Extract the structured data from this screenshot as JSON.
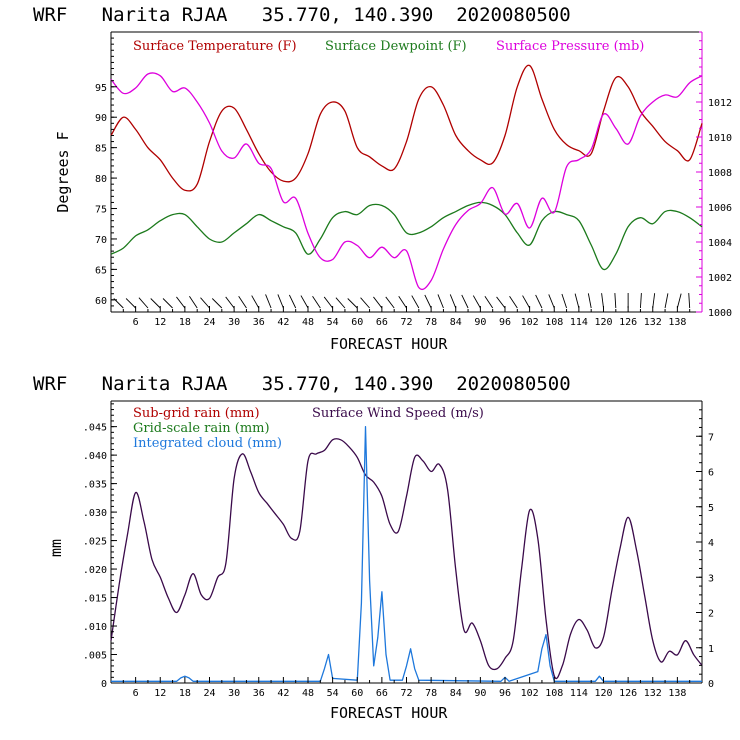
{
  "chart_data": [
    {
      "type": "line",
      "title": "WRF   Narita RJAA   35.770, 140.390  2020080500",
      "xlabel": "FORECAST HOUR",
      "ylabel": "Degrees F",
      "xlim": [
        0,
        144
      ],
      "ylim": [
        58,
        104
      ],
      "y2lim": [
        1000,
        1016
      ],
      "x_ticks": [
        6,
        12,
        18,
        24,
        30,
        36,
        42,
        48,
        54,
        60,
        66,
        72,
        78,
        84,
        90,
        96,
        102,
        108,
        114,
        120,
        126,
        132,
        138
      ],
      "x_tick_labels": [
        "6",
        "12",
        "18",
        "24",
        "30",
        "36",
        "42",
        "48",
        "54",
        "60",
        "66",
        "72",
        "78",
        "84",
        "90",
        "96",
        "102",
        "108",
        "114",
        "120",
        "126",
        "132",
        "138"
      ],
      "y_ticks": [
        60,
        65,
        70,
        75,
        80,
        85,
        90,
        95
      ],
      "y_tick_labels": [
        "60",
        "65",
        "70",
        "75",
        "80",
        "85",
        "90",
        "95"
      ],
      "y2_ticks": [
        1000,
        1002,
        1004,
        1006,
        1008,
        1010,
        1012
      ],
      "y2_tick_labels": [
        "1000",
        "1002",
        "1004",
        "1006",
        "1008",
        "1010",
        "1012"
      ],
      "colors": {
        "temperature": "#b00000",
        "dewpoint": "#1c7a1c",
        "pressure": "#dd00dd"
      },
      "legend": [
        "Surface Temperature (F)",
        "Surface Dewpoint (F)",
        "Surface Pressure (mb)"
      ],
      "series": [
        {
          "name": "Surface Temperature (F)",
          "axis": "left",
          "x": [
            0,
            3,
            6,
            9,
            12,
            15,
            18,
            21,
            24,
            27,
            30,
            33,
            36,
            39,
            42,
            45,
            48,
            51,
            54,
            57,
            60,
            63,
            66,
            69,
            72,
            75,
            78,
            81,
            84,
            87,
            90,
            93,
            96,
            99,
            102,
            105,
            108,
            111,
            114,
            117,
            120,
            123,
            126,
            129,
            132,
            135,
            138,
            141,
            144
          ],
          "values": [
            87,
            90,
            88,
            85,
            83,
            80,
            78,
            79,
            86,
            91,
            91.5,
            88,
            84,
            81,
            79.5,
            80,
            84,
            90.5,
            92.5,
            91,
            85,
            83.5,
            82,
            81.5,
            86,
            93,
            95,
            92,
            87,
            84.5,
            83,
            82.5,
            87,
            95,
            98.5,
            93,
            88,
            85.5,
            84.5,
            84,
            91,
            96.5,
            95,
            91,
            88.5,
            86,
            84.5,
            83,
            89
          ]
        },
        {
          "name": "Surface Dewpoint (F)",
          "axis": "left",
          "x": [
            0,
            3,
            6,
            9,
            12,
            15,
            18,
            21,
            24,
            27,
            30,
            33,
            36,
            39,
            42,
            45,
            48,
            51,
            54,
            57,
            60,
            63,
            66,
            69,
            72,
            75,
            78,
            81,
            84,
            87,
            90,
            93,
            96,
            99,
            102,
            105,
            108,
            111,
            114,
            117,
            120,
            123,
            126,
            129,
            132,
            135,
            138,
            141,
            144
          ],
          "values": [
            67.5,
            68.5,
            70.5,
            71.5,
            73,
            74,
            74,
            72,
            70,
            69.5,
            71,
            72.5,
            74,
            73,
            72,
            71,
            67.5,
            70,
            73.5,
            74.5,
            74,
            75.5,
            75.5,
            74,
            71,
            71,
            72,
            73.5,
            74.5,
            75.5,
            76,
            75.5,
            74,
            71,
            69,
            73,
            74.5,
            74,
            73,
            69,
            65,
            67.5,
            72,
            73.5,
            72.5,
            74.5,
            74.5,
            73.5,
            72
          ]
        },
        {
          "name": "Surface Pressure (mb)",
          "axis": "right",
          "x": [
            0,
            3,
            6,
            9,
            12,
            15,
            18,
            21,
            24,
            27,
            30,
            33,
            36,
            39,
            42,
            45,
            48,
            51,
            54,
            57,
            60,
            63,
            66,
            69,
            72,
            75,
            78,
            81,
            84,
            87,
            90,
            93,
            96,
            99,
            102,
            105,
            108,
            111,
            114,
            117,
            120,
            123,
            126,
            129,
            132,
            135,
            138,
            141,
            144
          ],
          "values": [
            1013.3,
            1012.5,
            1012.8,
            1013.6,
            1013.5,
            1012.6,
            1012.8,
            1012,
            1010.8,
            1009.2,
            1008.8,
            1009.6,
            1008.5,
            1008.2,
            1006.3,
            1006.5,
            1004.5,
            1003.1,
            1003,
            1004,
            1003.8,
            1003.1,
            1003.7,
            1003.1,
            1003.5,
            1001.4,
            1001.8,
            1003.6,
            1005,
            1005.8,
            1006.2,
            1007.1,
            1005.6,
            1006.2,
            1004.8,
            1006.5,
            1005.7,
            1008.3,
            1008.7,
            1009.3,
            1011.3,
            1010.5,
            1009.6,
            1011.2,
            1012,
            1012.4,
            1012.3,
            1013.1,
            1013.5
          ]
        }
      ]
    },
    {
      "type": "line",
      "title": "WRF   Narita RJAA   35.770, 140.390  2020080500",
      "xlabel": "FORECAST HOUR",
      "ylabel": "mm",
      "xlim": [
        0,
        144
      ],
      "ylim": [
        0,
        0.0495
      ],
      "y2lim": [
        0,
        8
      ],
      "x_ticks": [
        6,
        12,
        18,
        24,
        30,
        36,
        42,
        48,
        54,
        60,
        66,
        72,
        78,
        84,
        90,
        96,
        102,
        108,
        114,
        120,
        126,
        132,
        138
      ],
      "x_tick_labels": [
        "6",
        "12",
        "18",
        "24",
        "30",
        "36",
        "42",
        "48",
        "54",
        "60",
        "66",
        "72",
        "78",
        "84",
        "90",
        "96",
        "102",
        "108",
        "114",
        "120",
        "126",
        "132",
        "138"
      ],
      "y_ticks": [
        0,
        0.005,
        0.01,
        0.015,
        0.02,
        0.025,
        0.03,
        0.035,
        0.04,
        0.045
      ],
      "y_tick_labels": [
        "0",
        ".005",
        ".010",
        ".015",
        ".020",
        ".025",
        ".030",
        ".035",
        ".040",
        ".045"
      ],
      "y2_ticks": [
        0,
        1,
        2,
        3,
        4,
        5,
        6,
        7
      ],
      "y2_tick_labels": [
        "0",
        "1",
        "2",
        "3",
        "4",
        "5",
        "6",
        "7"
      ],
      "colors": {
        "subgrid": "#b00000",
        "gridscale": "#1c7a1c",
        "cloud": "#1e78dc",
        "wind": "#3a0a4a"
      },
      "legend": [
        "Sub-grid rain (mm)",
        "Grid-scale rain (mm)",
        "Integrated cloud (mm)",
        "Surface Wind Speed (m/s)"
      ],
      "series": [
        {
          "name": "Surface Wind Speed (m/s)",
          "axis": "right",
          "x": [
            0,
            2,
            4,
            6,
            8,
            10,
            12,
            14,
            16,
            18,
            20,
            22,
            24,
            26,
            28,
            30,
            32,
            34,
            36,
            38,
            40,
            42,
            44,
            46,
            48,
            50,
            52,
            54,
            56,
            58,
            60,
            62,
            64,
            66,
            68,
            70,
            72,
            74,
            76,
            78,
            80,
            82,
            84,
            86,
            88,
            90,
            92,
            94,
            96,
            98,
            100,
            102,
            104,
            106,
            108,
            110,
            112,
            114,
            116,
            118,
            120,
            122,
            124,
            126,
            128,
            130,
            132,
            134,
            136,
            138,
            140,
            142,
            144
          ],
          "values": [
            1.2,
            2.8,
            4.2,
            5.4,
            4.6,
            3.5,
            3.0,
            2.4,
            2.0,
            2.5,
            3.1,
            2.5,
            2.4,
            3.0,
            3.4,
            5.8,
            6.5,
            6.0,
            5.4,
            5.1,
            4.8,
            4.5,
            4.1,
            4.3,
            6.3,
            6.5,
            6.6,
            6.9,
            6.9,
            6.7,
            6.4,
            5.9,
            5.7,
            5.3,
            4.5,
            4.3,
            5.3,
            6.4,
            6.3,
            6.0,
            6.2,
            5.5,
            3.2,
            1.5,
            1.7,
            1.2,
            0.5,
            0.4,
            0.7,
            1.2,
            3.2,
            4.9,
            4.1,
            1.8,
            0.2,
            0.5,
            1.4,
            1.8,
            1.5,
            1.0,
            1.3,
            2.6,
            3.8,
            4.7,
            3.8,
            2.5,
            1.2,
            0.6,
            0.9,
            0.8,
            1.2,
            0.8,
            0.5
          ]
        },
        {
          "name": "Integrated cloud (mm)",
          "axis": "left",
          "x": [
            0,
            16,
            17,
            18,
            19,
            20,
            51,
            52,
            53,
            54,
            60,
            61,
            62,
            63,
            64,
            65,
            66,
            67,
            68,
            71,
            72,
            73,
            74,
            75,
            95,
            96,
            97,
            104,
            105,
            106,
            107,
            108,
            118,
            119,
            120,
            144
          ],
          "values": [
            0.0003,
            0.0003,
            0.0009,
            0.0012,
            0.0009,
            0.0003,
            0.0003,
            0.0025,
            0.005,
            0.0008,
            0.0005,
            0.014,
            0.045,
            0.018,
            0.003,
            0.008,
            0.016,
            0.005,
            0.0005,
            0.0005,
            0.003,
            0.006,
            0.0025,
            0.0005,
            0.0003,
            0.001,
            0.0003,
            0.002,
            0.006,
            0.0085,
            0.003,
            0.0003,
            0.0003,
            0.0012,
            0.0003,
            0.0003
          ]
        },
        {
          "name": "Sub-grid rain (mm)",
          "axis": "left",
          "x": [],
          "values": []
        },
        {
          "name": "Grid-scale rain (mm)",
          "axis": "left",
          "x": [],
          "values": []
        }
      ]
    }
  ]
}
